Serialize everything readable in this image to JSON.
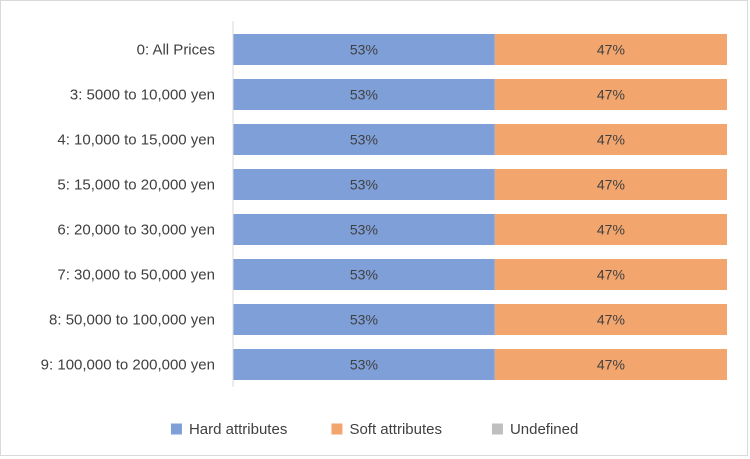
{
  "chart_data": {
    "type": "bar",
    "orientation": "horizontal",
    "stacked": "100%",
    "categories": [
      "0: All Prices",
      "3: 5000 to 10,000 yen",
      "4: 10,000 to 15,000 yen",
      "5: 15,000 to 20,000 yen",
      "6: 20,000 to 30,000 yen",
      "7: 30,000 to 50,000 yen",
      "8: 50,000 to 100,000 yen",
      "9: 100,000 to 200,000 yen"
    ],
    "series": [
      {
        "name": "Hard attributes",
        "color": "#7f9fd8",
        "values": [
          53,
          53,
          53,
          53,
          53,
          53,
          53,
          53
        ],
        "labels": [
          "53%",
          "53%",
          "53%",
          "53%",
          "53%",
          "53%",
          "53%",
          "53%"
        ]
      },
      {
        "name": "Soft attributes",
        "color": "#f2a66e",
        "values": [
          47,
          47,
          47,
          47,
          47,
          47,
          47,
          47
        ],
        "labels": [
          "47%",
          "47%",
          "47%",
          "47%",
          "47%",
          "47%",
          "47%",
          "47%"
        ]
      },
      {
        "name": "Undefined",
        "color": "#bfbfbf",
        "values": [
          0,
          0,
          0,
          0,
          0,
          0,
          0,
          0
        ],
        "labels": []
      }
    ],
    "xlim": [
      0,
      100
    ],
    "grid": false,
    "legend_position": "bottom"
  }
}
